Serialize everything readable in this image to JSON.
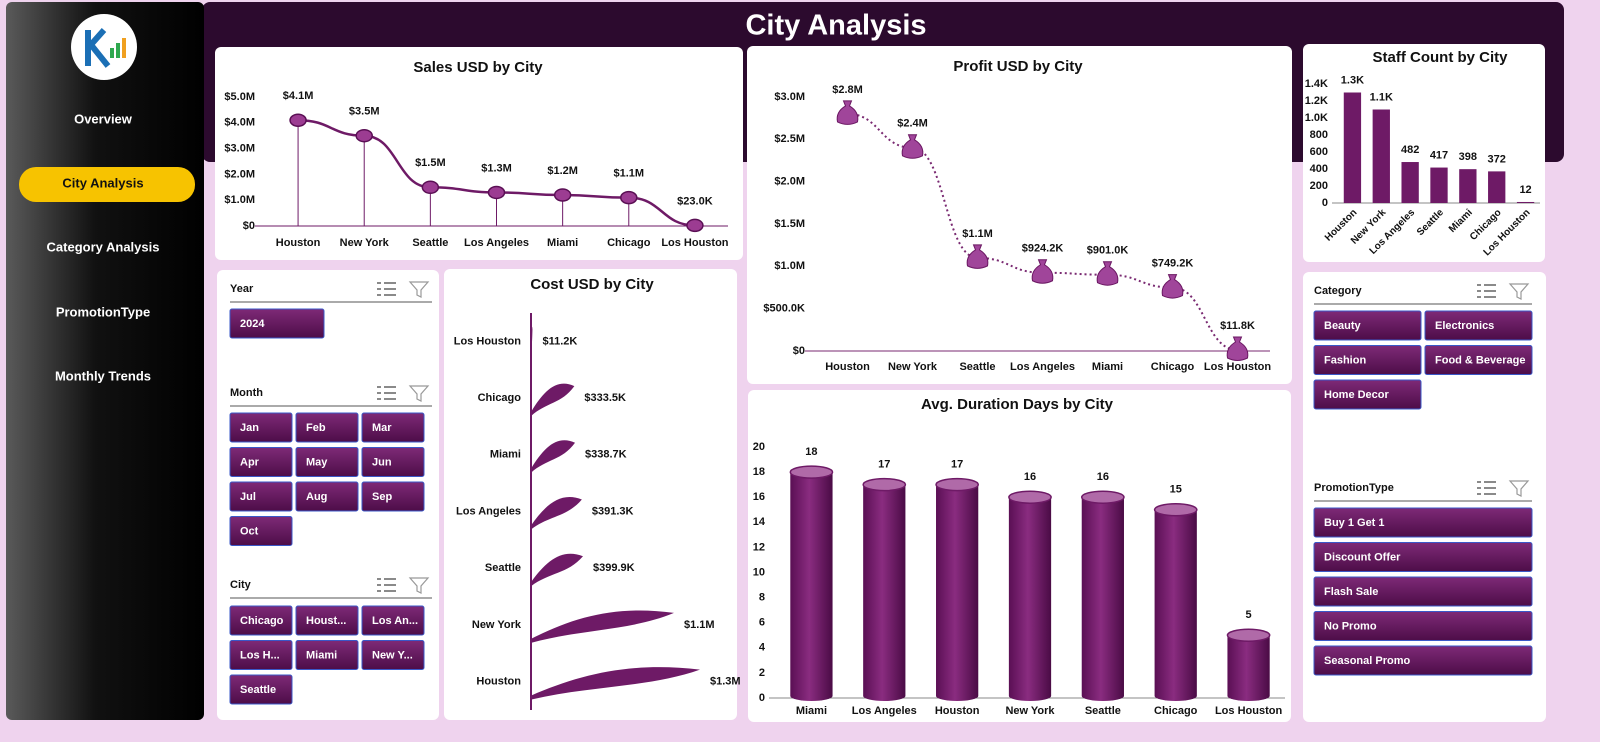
{
  "header": {
    "title": "City Analysis"
  },
  "nav": {
    "items": [
      "Overview",
      "City Analysis",
      "Category Analysis",
      "PromotionType",
      "Monthly Trends"
    ],
    "active": "City Analysis"
  },
  "slicers": [
    {
      "title": "Year",
      "items": [
        "2024"
      ]
    },
    {
      "title": "Month",
      "items": [
        "Jan",
        "Feb",
        "Mar",
        "Apr",
        "May",
        "Jun",
        "Jul",
        "Aug",
        "Sep",
        "Oct"
      ]
    },
    {
      "title": "City",
      "items": [
        "Chicago",
        "Houst...",
        "Los An...",
        "Los H...",
        "Miami",
        "New Y...",
        "Seattle"
      ]
    },
    {
      "title": "Category",
      "items": [
        "Beauty",
        "Electronics",
        "Fashion",
        "Food & Beverage",
        "Home Decor"
      ]
    },
    {
      "title": "PromotionType",
      "items": [
        "Buy 1 Get 1",
        "Discount Offer",
        "Flash Sale",
        "No Promo",
        "Seasonal Promo"
      ]
    }
  ],
  "chart_data": [
    {
      "type": "line",
      "title": "Sales USD by City",
      "color": "#6e1a66",
      "drop_lines": true,
      "marker": "coins",
      "categories": [
        "Houston",
        "New York",
        "Seattle",
        "Los Angeles",
        "Miami",
        "Chicago",
        "Los Houston"
      ],
      "values": [
        4100000,
        3500000,
        1500000,
        1300000,
        1200000,
        1100000,
        23000
      ],
      "value_labels": [
        "$4.1M",
        "$3.5M",
        "$1.5M",
        "$1.3M",
        "$1.2M",
        "$1.1M",
        "$23.0K"
      ],
      "ylim": [
        0,
        5000000
      ],
      "yticks": [
        {
          "value": 0,
          "label": "$0"
        },
        {
          "value": 1000000,
          "label": "$1.0M"
        },
        {
          "value": 2000000,
          "label": "$2.0M"
        },
        {
          "value": 3000000,
          "label": "$3.0M"
        },
        {
          "value": 4000000,
          "label": "$4.0M"
        },
        {
          "value": 5000000,
          "label": "$5.0M"
        }
      ]
    },
    {
      "type": "line",
      "title": "Profit USD by City",
      "color": "#7a2a72",
      "dotted": true,
      "marker": "bag",
      "categories": [
        "Houston",
        "New York",
        "Seattle",
        "Los Angeles",
        "Miami",
        "Chicago",
        "Los Houston"
      ],
      "values": [
        2800000,
        2400000,
        1100000,
        924200,
        901000,
        749200,
        11800
      ],
      "value_labels": [
        "$2.8M",
        "$2.4M",
        "$1.1M",
        "$924.2K",
        "$901.0K",
        "$749.2K",
        "$11.8K"
      ],
      "ylim": [
        0,
        3000000
      ],
      "yticks": [
        {
          "value": 0,
          "label": "$0"
        },
        {
          "value": 500000,
          "label": "$500.0K"
        },
        {
          "value": 1000000,
          "label": "$1.0M"
        },
        {
          "value": 1500000,
          "label": "$1.5M"
        },
        {
          "value": 2000000,
          "label": "$2.0M"
        },
        {
          "value": 2500000,
          "label": "$2.5M"
        },
        {
          "value": 3000000,
          "label": "$3.0M"
        }
      ]
    },
    {
      "type": "bar",
      "title": "Staff Count by City",
      "color": "#6e1a66",
      "categories": [
        "Houston",
        "New York",
        "Los Angeles",
        "Seattle",
        "Miami",
        "Chicago",
        "Los Houston"
      ],
      "values": [
        1300,
        1100,
        482,
        417,
        398,
        372,
        12
      ],
      "value_labels": [
        "1.3K",
        "1.1K",
        "482",
        "417",
        "398",
        "372",
        "12"
      ],
      "ylim": [
        0,
        1400
      ],
      "yticks": [
        0,
        200,
        400,
        600,
        800,
        {
          "value": 1000,
          "label": "1.0K"
        },
        {
          "value": 1200,
          "label": "1.2K"
        },
        {
          "value": 1400,
          "label": "1.4K"
        }
      ]
    },
    {
      "type": "hbar",
      "title": "Cost USD by City",
      "color": "#6e1a66",
      "categories": [
        "Los Houston",
        "Chicago",
        "Miami",
        "Los Angeles",
        "Seattle",
        "New York",
        "Houston"
      ],
      "values": [
        11200,
        333500,
        338700,
        391300,
        399900,
        1100000,
        1300000
      ],
      "value_labels": [
        "$11.2K",
        "$333.5K",
        "$338.7K",
        "$391.3K",
        "$399.9K",
        "$1.1M",
        "$1.3M"
      ]
    },
    {
      "type": "bar",
      "title": "Avg. Duration Days by City",
      "color": "#6e1a66",
      "shape": "cylinder",
      "categories": [
        "Miami",
        "Los Angeles",
        "Houston",
        "New York",
        "Seattle",
        "Chicago",
        "Los Houston"
      ],
      "values": [
        18,
        17,
        17,
        16,
        16,
        15,
        5
      ],
      "ylim": [
        0,
        20
      ],
      "yticks": [
        0,
        2,
        4,
        6,
        8,
        10,
        12,
        14,
        16,
        18,
        20
      ]
    }
  ]
}
